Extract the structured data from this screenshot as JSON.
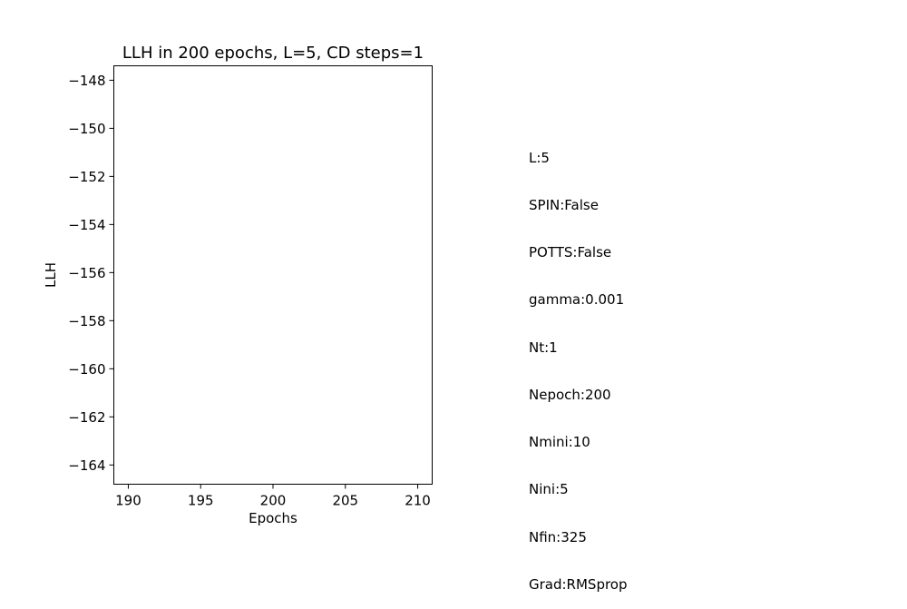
{
  "chart_data": {
    "type": "line",
    "title": "LLH in 200 epochs, L=5, CD steps=1",
    "xlabel": "Epochs",
    "ylabel": "LLH",
    "xlim": [
      189,
      211
    ],
    "ylim": [
      -164.8,
      -147.4
    ],
    "x_ticks": [
      190,
      195,
      200,
      205,
      210
    ],
    "x_tick_labels": [
      "190",
      "195",
      "200",
      "205",
      "210"
    ],
    "y_ticks": [
      -148,
      -150,
      -152,
      -154,
      -156,
      -158,
      -160,
      -162,
      -164
    ],
    "y_tick_labels": [
      "−148",
      "−150",
      "−152",
      "−154",
      "−156",
      "−158",
      "−160",
      "−162",
      "−164"
    ],
    "series": [],
    "grid": false
  },
  "params": [
    "L:5",
    "SPIN:False",
    "POTTS:False",
    "gamma:0.001",
    "Nt:1",
    "Nepoch:200",
    "Nmini:10",
    "Nini:5",
    "Nfin:325",
    "Grad:RMSprop"
  ]
}
